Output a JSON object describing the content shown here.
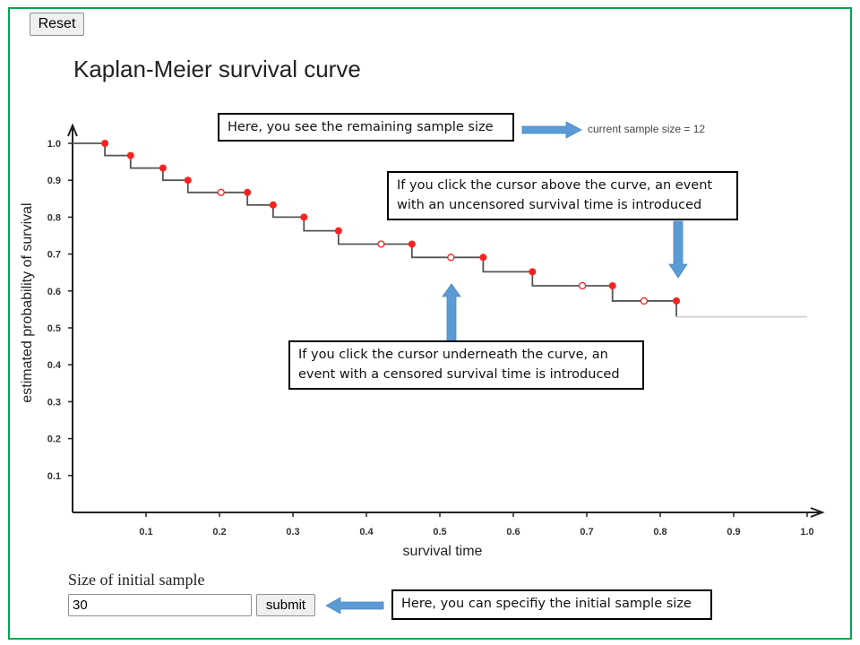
{
  "toolbar": {
    "reset_label": "Reset"
  },
  "header": {
    "title": "Kaplan-Meier survival curve"
  },
  "status": {
    "current_sample_size_text": "current sample size = 12"
  },
  "callouts": {
    "sample_size": "Here, you see the remaining sample size",
    "above_curve": "If you click the cursor above the curve, an event with an uncensored survival time is introduced",
    "below_curve": "If you click the cursor underneath the curve, an event with a censored survival time is introduced",
    "initial_size": "Here, you can specifiy the initial sample size"
  },
  "form": {
    "label": "Size of initial sample",
    "input_value": "30",
    "submit_label": "submit"
  },
  "colors": {
    "frame": "#00a651",
    "event": "#ff2020",
    "curve": "#555555",
    "arrow": "#5b9bd5",
    "tail": "#cfcfcf"
  },
  "chart_data": {
    "type": "line",
    "title": "Kaplan-Meier survival curve",
    "xlabel": "survival time",
    "ylabel": "estimated probability of survival",
    "xlim": [
      0,
      1.0
    ],
    "ylim": [
      0,
      1.0
    ],
    "x_ticks": [
      "0.1",
      "0.2",
      "0.3",
      "0.4",
      "0.5",
      "0.6",
      "0.7",
      "0.8",
      "0.9",
      "1.0"
    ],
    "y_ticks": [
      "0.1",
      "0.2",
      "0.3",
      "0.4",
      "0.5",
      "0.6",
      "0.7",
      "0.8",
      "0.9",
      "1.0"
    ],
    "grid": false,
    "events": [
      {
        "t": 0.044,
        "before": 1.0,
        "after": 0.967,
        "censored": false
      },
      {
        "t": 0.079,
        "before": 0.967,
        "after": 0.933,
        "censored": false
      },
      {
        "t": 0.123,
        "before": 0.933,
        "after": 0.9,
        "censored": false
      },
      {
        "t": 0.157,
        "before": 0.9,
        "after": 0.867,
        "censored": false
      },
      {
        "t": 0.202,
        "before": 0.867,
        "after": 0.867,
        "censored": true
      },
      {
        "t": 0.238,
        "before": 0.867,
        "after": 0.833,
        "censored": false
      },
      {
        "t": 0.273,
        "before": 0.833,
        "after": 0.8,
        "censored": false
      },
      {
        "t": 0.315,
        "before": 0.8,
        "after": 0.763,
        "censored": false
      },
      {
        "t": 0.362,
        "before": 0.763,
        "after": 0.727,
        "censored": false
      },
      {
        "t": 0.42,
        "before": 0.727,
        "after": 0.727,
        "censored": true
      },
      {
        "t": 0.462,
        "before": 0.727,
        "after": 0.691,
        "censored": false
      },
      {
        "t": 0.515,
        "before": 0.691,
        "after": 0.691,
        "censored": true
      },
      {
        "t": 0.559,
        "before": 0.691,
        "after": 0.652,
        "censored": false
      },
      {
        "t": 0.626,
        "before": 0.652,
        "after": 0.614,
        "censored": false
      },
      {
        "t": 0.694,
        "before": 0.614,
        "after": 0.614,
        "censored": true
      },
      {
        "t": 0.735,
        "before": 0.614,
        "after": 0.573,
        "censored": false
      },
      {
        "t": 0.778,
        "before": 0.573,
        "after": 0.573,
        "censored": true
      },
      {
        "t": 0.822,
        "before": 0.573,
        "after": 0.53,
        "censored": false
      }
    ],
    "tail": {
      "from": 0.822,
      "to": 1.0,
      "value": 0.53
    }
  }
}
